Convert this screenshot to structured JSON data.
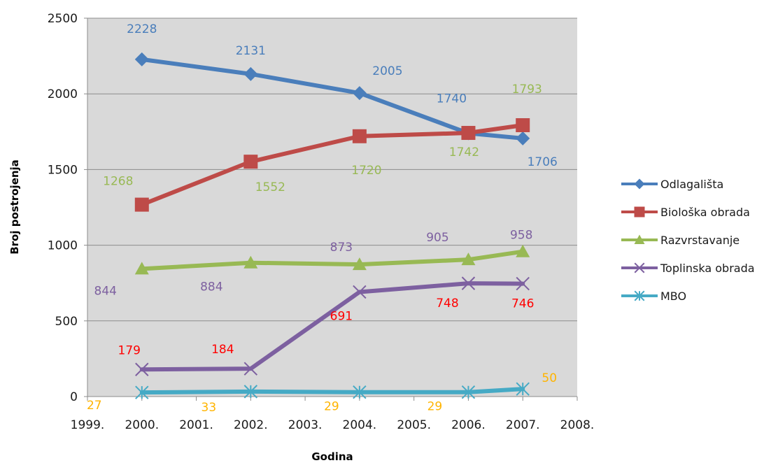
{
  "chart_data": {
    "type": "line",
    "title": "",
    "xlabel": "Godina",
    "ylabel": "Broj postrojenja",
    "ylim": [
      0,
      2500
    ],
    "yticks": [
      "0",
      "500",
      "1000",
      "1500",
      "2000",
      "2500"
    ],
    "grid": true,
    "legend": "right",
    "x_tick_labels": [
      "1999.",
      "2000.",
      "2001.",
      "2002.",
      "2003.",
      "2004.",
      "2005.",
      "2006.",
      "2007.",
      "2008."
    ],
    "x": [
      "2000.",
      "2002.",
      "2004.",
      "2006.",
      "2007."
    ],
    "series": [
      {
        "name": "Odlagališta",
        "values": [
          2228,
          2131,
          2005,
          1740,
          1706
        ],
        "color": "#4a7ebb",
        "marker": "diamond"
      },
      {
        "name": "Biološka obrada",
        "values": [
          1268,
          1552,
          1720,
          1742,
          1793
        ],
        "color": "#be4b48",
        "marker": "square"
      },
      {
        "name": "Razvrstavanje",
        "values": [
          844,
          884,
          873,
          905,
          958
        ],
        "color": "#98b954",
        "marker": "triangle"
      },
      {
        "name": "Toplinska obrada",
        "values": [
          179,
          184,
          691,
          748,
          746
        ],
        "color": "#7d60a0",
        "marker": "x"
      },
      {
        "name": "MBO",
        "values": [
          27,
          33,
          29,
          29,
          50
        ],
        "color": "#46aac5",
        "marker": "star"
      }
    ],
    "data_labels": [
      {
        "text": "2228",
        "series": 0,
        "point": 0,
        "color": "#4a7ebb"
      },
      {
        "text": "2131",
        "series": 0,
        "point": 1,
        "color": "#4a7ebb"
      },
      {
        "text": "2005",
        "series": 0,
        "point": 2,
        "color": "#4a7ebb"
      },
      {
        "text": "1740",
        "series": 0,
        "point": 3,
        "color": "#4a7ebb"
      },
      {
        "text": "1706",
        "series": 0,
        "point": 4,
        "color": "#4a7ebb"
      },
      {
        "text": "1268",
        "series": 1,
        "point": 0,
        "color": "#98b954"
      },
      {
        "text": "1552",
        "series": 1,
        "point": 1,
        "color": "#98b954"
      },
      {
        "text": "1720",
        "series": 1,
        "point": 2,
        "color": "#98b954"
      },
      {
        "text": "1742",
        "series": 1,
        "point": 3,
        "color": "#98b954"
      },
      {
        "text": "1793",
        "series": 1,
        "point": 4,
        "color": "#98b954"
      },
      {
        "text": "844",
        "series": 2,
        "point": 0,
        "color": "#7d60a0"
      },
      {
        "text": "884",
        "series": 2,
        "point": 1,
        "color": "#7d60a0"
      },
      {
        "text": "873",
        "series": 2,
        "point": 2,
        "color": "#7d60a0"
      },
      {
        "text": "905",
        "series": 2,
        "point": 3,
        "color": "#7d60a0"
      },
      {
        "text": "958",
        "series": 2,
        "point": 4,
        "color": "#7d60a0"
      },
      {
        "text": "179",
        "series": 3,
        "point": 0,
        "color": "#ff0000"
      },
      {
        "text": "184",
        "series": 3,
        "point": 1,
        "color": "#ff0000"
      },
      {
        "text": "691",
        "series": 3,
        "point": 2,
        "color": "#ff0000"
      },
      {
        "text": "748",
        "series": 3,
        "point": 3,
        "color": "#ff0000"
      },
      {
        "text": "746",
        "series": 3,
        "point": 4,
        "color": "#ff0000"
      },
      {
        "text": "27",
        "series": 4,
        "point": 0,
        "color": "#ffb400"
      },
      {
        "text": "33",
        "series": 4,
        "point": 1,
        "color": "#ffb400"
      },
      {
        "text": "29",
        "series": 4,
        "point": 2,
        "color": "#ffb400"
      },
      {
        "text": "29",
        "series": 4,
        "point": 3,
        "color": "#ffb400"
      },
      {
        "text": "50",
        "series": 4,
        "point": 4,
        "color": "#ffb400"
      }
    ],
    "colors": {
      "plot_background": "#d9d9d9",
      "gridline": "#8c8c8c"
    }
  }
}
